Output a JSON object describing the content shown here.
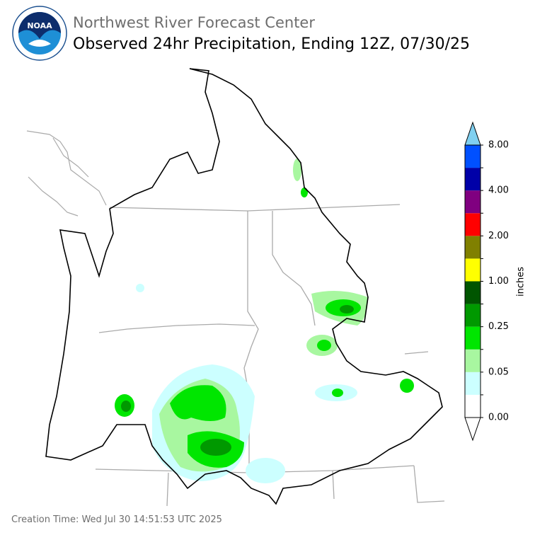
{
  "header": {
    "agency": "Northwest River Forecast Center",
    "title": "Observed 24hr Precipitation, Ending 12Z, 07/30/25"
  },
  "colorbar": {
    "label": "inches",
    "colors": [
      "#ffffff",
      "#ccffff",
      "#a8f7a0",
      "#00e600",
      "#009900",
      "#005500",
      "#ffff00",
      "#808000",
      "#ff0000",
      "#800080",
      "#0000a8",
      "#0050ff"
    ],
    "over_color": "#80d0f0",
    "ticks": [
      "0.00",
      "0.05",
      "0.25",
      "1.00",
      "2.00",
      "4.00",
      "8.00"
    ]
  },
  "footer": "Creation Time: Wed Jul 30 14:51:53 UTC 2025"
}
